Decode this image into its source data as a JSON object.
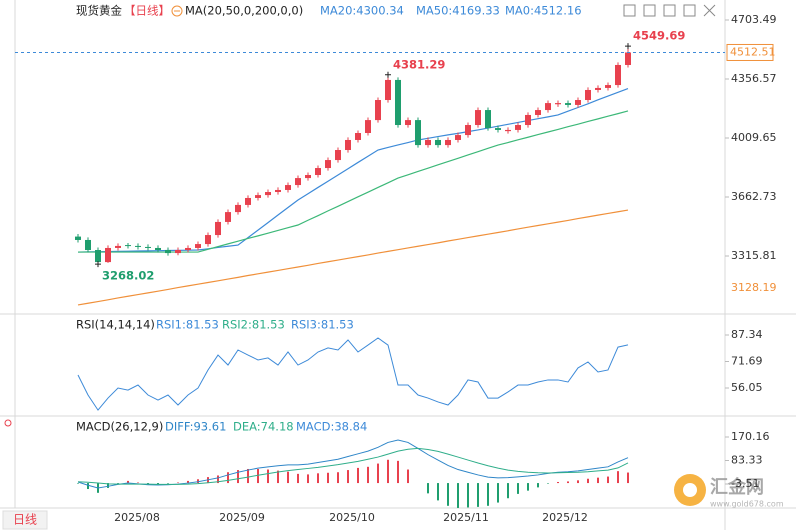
{
  "chart_data": [
    {
      "type": "candlestick",
      "title": "现货黄金",
      "period": "【日线】",
      "indicator": "MA(20,50,0,200,0,0)",
      "extra_value": "MA0:4512.16",
      "open": [
        3430,
        3410,
        3351,
        3280,
        3363,
        3380,
        3375,
        3369,
        3363,
        3351,
        3333,
        3351,
        3363,
        3386,
        3439,
        3516,
        3574,
        3616,
        3657,
        3674,
        3692,
        3704,
        3733,
        3774,
        3792,
        3833,
        3880,
        3939,
        3998,
        4039,
        4115,
        4233,
        4351,
        4086,
        4115,
        3968,
        3998,
        3968,
        3998,
        4027,
        4086,
        4174,
        4068,
        4050,
        4057,
        4086,
        4145,
        4174,
        4208,
        4215,
        4204,
        4233,
        4292,
        4304,
        4321,
        4439
      ],
      "high": [
        3445,
        3425,
        3366,
        3378,
        3390,
        3392,
        3390,
        3384,
        3378,
        3366,
        3366,
        3378,
        3401,
        3454,
        3531,
        3589,
        3631,
        3672,
        3689,
        3707,
        3719,
        3748,
        3789,
        3807,
        3848,
        3895,
        3954,
        4013,
        4054,
        4130,
        4248,
        4381.29,
        4366,
        4130,
        4130,
        4013,
        4013,
        4013,
        4042,
        4101,
        4189,
        4189,
        4083,
        4072,
        4101,
        4160,
        4189,
        4230,
        4230,
        4230,
        4248,
        4307,
        4319,
        4336,
        4454,
        4549.69
      ],
      "low": [
        3395,
        3336,
        3268.02,
        3275,
        3348,
        3360,
        3354,
        3348,
        3336,
        3318,
        3320,
        3336,
        3348,
        3371,
        3424,
        3501,
        3559,
        3601,
        3642,
        3659,
        3677,
        3689,
        3718,
        3759,
        3777,
        3818,
        3865,
        3924,
        3983,
        4024,
        4100,
        4218,
        4071,
        4071,
        3953,
        3953,
        3953,
        3953,
        3983,
        4012,
        4071,
        4053,
        4042,
        4035,
        4042,
        4071,
        4130,
        4159,
        4193,
        4189,
        4189,
        4218,
        4277,
        4289,
        4306,
        4424
      ],
      "close": [
        3410,
        3351,
        3280,
        3363,
        3375,
        3375,
        3369,
        3363,
        3351,
        3333,
        3351,
        3363,
        3386,
        3439,
        3516,
        3574,
        3616,
        3657,
        3674,
        3692,
        3704,
        3733,
        3774,
        3792,
        3833,
        3880,
        3939,
        3998,
        4039,
        4115,
        4233,
        4351,
        4086,
        4115,
        3968,
        3998,
        3968,
        3998,
        4027,
        4086,
        4174,
        4068,
        4057,
        4057,
        4086,
        4145,
        4174,
        4215,
        4215,
        4204,
        4233,
        4292,
        4304,
        4321,
        4439,
        4512.51
      ],
      "up_color": "#e8414e",
      "down_color": "#1f9e6e",
      "series": [
        {
          "name": "MA20:4300.34",
          "color": "#3d8ad8",
          "values": [
            3339,
            3340,
            3341,
            3342,
            3343,
            3344,
            3345,
            3346,
            3347,
            3348,
            3349,
            3350,
            3351,
            3358,
            3366,
            3373,
            3380,
            3424,
            3468,
            3512,
            3557,
            3601,
            3645,
            3682,
            3719,
            3755,
            3792,
            3829,
            3866,
            3902,
            3939,
            3954,
            3969,
            3983,
            3998,
            4008,
            4018,
            4028,
            4037,
            4047,
            4057,
            4068,
            4079,
            4090,
            4101,
            4112,
            4123,
            4134,
            4145,
            4167,
            4189,
            4211,
            4234,
            4256,
            4278,
            4300
          ]
        },
        {
          "name": "MA50:4169.33",
          "color": "#3cb878",
          "values": [
            3339,
            3339,
            3339,
            3339,
            3339,
            3339,
            3339,
            3339,
            3339,
            3339,
            3339,
            3339,
            3339,
            3355,
            3371,
            3387,
            3403,
            3419,
            3434,
            3450,
            3466,
            3482,
            3498,
            3526,
            3553,
            3581,
            3608,
            3636,
            3664,
            3691,
            3719,
            3746,
            3774,
            3793,
            3813,
            3832,
            3852,
            3871,
            3890,
            3910,
            3929,
            3949,
            3968,
            3983,
            3999,
            4014,
            4030,
            4045,
            4060,
            4076,
            4091,
            4107,
            4122,
            4138,
            4153,
            4169
          ]
        },
        {
          "color": "#f0903a",
          "values": [
            3028,
            3038,
            3048,
            3058,
            3069,
            3079,
            3089,
            3099,
            3109,
            3119,
            3130,
            3140,
            3150,
            3160,
            3170,
            3180,
            3190,
            3201,
            3211,
            3221,
            3231,
            3241,
            3251,
            3261,
            3272,
            3282,
            3292,
            3302,
            3312,
            3322,
            3333,
            3343,
            3353,
            3363,
            3373,
            3383,
            3393,
            3404,
            3414,
            3424,
            3434,
            3444,
            3454,
            3464,
            3475,
            3485,
            3495,
            3505,
            3515,
            3525,
            3536,
            3546,
            3556,
            3566,
            3576,
            3586
          ]
        }
      ],
      "annotations": [
        {
          "value": 4549.69,
          "label": "4549.69"
        },
        {
          "value": 4381.29,
          "label": "4381.29"
        },
        {
          "value": 3268.02,
          "label": "3268.02"
        }
      ],
      "price_line": {
        "value": 4512.51,
        "label": "4512.51"
      },
      "low_label": {
        "value": 3128.19,
        "label": "3128.19"
      },
      "ylim": [
        2980.6,
        4821.1
      ],
      "yticks": [
        3315.81,
        3662.73,
        4009.65,
        4356.57,
        4703.49
      ]
    },
    {
      "type": "line",
      "legend": [
        "RSI(14,14,14)",
        "RSI1:81.53",
        "RSI2:81.53",
        "RSI3:81.53"
      ],
      "series": [
        {
          "color": "#3d8ad8",
          "values": [
            63.7,
            51.9,
            43.0,
            50.1,
            56.0,
            54.8,
            57.8,
            51.9,
            48.9,
            51.9,
            46.0,
            51.9,
            56.0,
            66.7,
            75.5,
            69.6,
            78.5,
            75.5,
            72.6,
            73.8,
            69.6,
            77.3,
            69.6,
            72.6,
            77.3,
            79.7,
            78.5,
            84.4,
            77.3,
            81.4,
            85.6,
            81.4,
            57.8,
            57.8,
            51.9,
            50.1,
            47.8,
            46.0,
            51.9,
            60.8,
            59.6,
            50.1,
            50.1,
            53.7,
            57.8,
            57.8,
            59.6,
            60.8,
            60.8,
            59.6,
            67.9,
            71.4,
            65.5,
            66.7,
            80.2,
            81.53
          ]
        }
      ],
      "ylim": [
        40.1,
        99.15
      ],
      "yticks": [
        56.05,
        71.69,
        87.34
      ]
    },
    {
      "type": "macd",
      "legend": [
        "MACD(26,12,9)",
        "DIFF:93.61",
        "DEA:74.18",
        "MACD:38.84"
      ],
      "diff": {
        "color": "#2f86c8",
        "values": [
          4,
          -8,
          -18,
          -12,
          -5,
          0,
          -3,
          -6,
          -7,
          -6,
          -4,
          0,
          5,
          12,
          19,
          30,
          40,
          48,
          55,
          60,
          64,
          67,
          67,
          70,
          76,
          82,
          88,
          98,
          108,
          118,
          132,
          150,
          159,
          150,
          128,
          105,
          85,
          65,
          50,
          40,
          30,
          22,
          19,
          20,
          23,
          26,
          30,
          36,
          40,
          42,
          45,
          50,
          55,
          60,
          78,
          93.61
        ]
      },
      "dea": {
        "color": "#2fae8a",
        "values": [
          5,
          3,
          0,
          -3,
          -4,
          -4,
          -4,
          -4,
          -5,
          -5,
          -5,
          -4,
          -2,
          1,
          5,
          10,
          16,
          22,
          29,
          35,
          41,
          46,
          50,
          54,
          58,
          63,
          68,
          74,
          80,
          88,
          96,
          107,
          118,
          125,
          128,
          124,
          117,
          107,
          96,
          85,
          74,
          64,
          55,
          48,
          43,
          40,
          38,
          37,
          38,
          39,
          40,
          42,
          45,
          48,
          56,
          74.18
        ]
      },
      "histogram": {
        "up_color": "#e8414e",
        "down_color": "#1f9e6e",
        "values": [
          -2,
          -22,
          -36,
          -18,
          -2,
          8,
          2,
          -4,
          -4,
          -2,
          2,
          8,
          14,
          22,
          28,
          40,
          48,
          52,
          52,
          50,
          46,
          42,
          34,
          32,
          36,
          38,
          40,
          48,
          56,
          60,
          72,
          86,
          82,
          50,
          0,
          -38,
          -64,
          -84,
          -92,
          -90,
          -88,
          -84,
          -72,
          -56,
          -40,
          -28,
          -16,
          -2,
          4,
          6,
          10,
          16,
          20,
          24,
          44,
          38.84
        ]
      },
      "ylim": [
        -92.1,
        240.3
      ],
      "yticks": [
        -3.51,
        83.33,
        170.16
      ]
    }
  ],
  "x_labels": [
    "2025/08",
    "2025/09",
    "2025/10",
    "2025/11",
    "2025/12"
  ],
  "period_button": "日线",
  "watermark": {
    "name": "汇金网",
    "url": "www.gold678.com"
  }
}
